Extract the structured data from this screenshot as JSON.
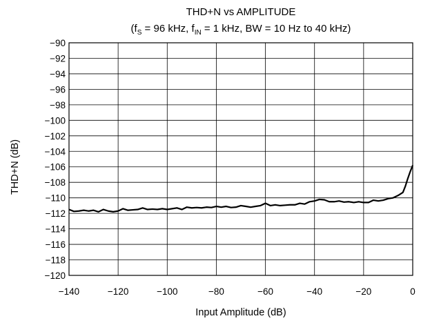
{
  "chart_data": {
    "type": "line",
    "title": "THD+N vs AMPLITUDE",
    "subtitle": {
      "open": "(f",
      "fs_sub": "S",
      "part1": " = 96 kHz, f",
      "fin_sub": "IN",
      "part2": " = 1 kHz, BW = 10 Hz to 40 kHz)"
    },
    "xlabel": "Input Amplitude (dB)",
    "ylabel": "THD+N (dB)",
    "xlim": [
      -140,
      0
    ],
    "ylim": [
      -120,
      -90
    ],
    "grid": true,
    "x_ticks": [
      -140,
      -120,
      -100,
      -80,
      -60,
      -40,
      -20,
      0
    ],
    "x_tick_labels": [
      "−140",
      "−120",
      "−100",
      "−80",
      "−60",
      "−40",
      "−20",
      "0"
    ],
    "y_ticks": [
      -90,
      -92,
      -94,
      -96,
      -98,
      -100,
      -102,
      -104,
      -106,
      -108,
      -110,
      -112,
      -114,
      -116,
      -118,
      -120
    ],
    "y_tick_labels": [
      "−90",
      "−92",
      "−94",
      "−96",
      "−98",
      "−100",
      "−102",
      "−104",
      "−106",
      "−108",
      "−110",
      "−112",
      "−114",
      "−116",
      "−118",
      "−120"
    ],
    "series": [
      {
        "color": "#000000",
        "x": [
          -140,
          -138,
          -136,
          -134,
          -132,
          -130,
          -128,
          -126,
          -124,
          -122,
          -120,
          -118,
          -116,
          -114,
          -112,
          -110,
          -108,
          -106,
          -104,
          -102,
          -100,
          -98,
          -96,
          -94,
          -92,
          -90,
          -88,
          -86,
          -84,
          -82,
          -80,
          -78,
          -76,
          -74,
          -72,
          -70,
          -68,
          -66,
          -64,
          -62,
          -60,
          -58,
          -56,
          -54,
          -52,
          -50,
          -48,
          -46,
          -44,
          -42,
          -40,
          -38,
          -36,
          -34,
          -32,
          -30,
          -28,
          -26,
          -24,
          -22,
          -20,
          -18,
          -16,
          -14,
          -12,
          -10,
          -8,
          -6,
          -4,
          -3,
          -2,
          -1,
          0
        ],
        "y": [
          -111.5,
          -111.75,
          -111.7,
          -111.6,
          -111.7,
          -111.6,
          -111.8,
          -111.5,
          -111.7,
          -111.8,
          -111.7,
          -111.4,
          -111.6,
          -111.55,
          -111.5,
          -111.3,
          -111.5,
          -111.45,
          -111.5,
          -111.4,
          -111.5,
          -111.4,
          -111.3,
          -111.5,
          -111.2,
          -111.3,
          -111.25,
          -111.3,
          -111.2,
          -111.25,
          -111.1,
          -111.2,
          -111.1,
          -111.25,
          -111.2,
          -111.0,
          -111.1,
          -111.2,
          -111.1,
          -111.0,
          -110.7,
          -111.0,
          -110.9,
          -111.0,
          -110.95,
          -110.9,
          -110.9,
          -110.7,
          -110.8,
          -110.5,
          -110.4,
          -110.2,
          -110.25,
          -110.5,
          -110.5,
          -110.4,
          -110.55,
          -110.5,
          -110.6,
          -110.5,
          -110.6,
          -110.6,
          -110.3,
          -110.4,
          -110.3,
          -110.1,
          -110.0,
          -109.7,
          -109.3,
          -108.5,
          -107.5,
          -106.6,
          -105.8
        ]
      }
    ]
  }
}
